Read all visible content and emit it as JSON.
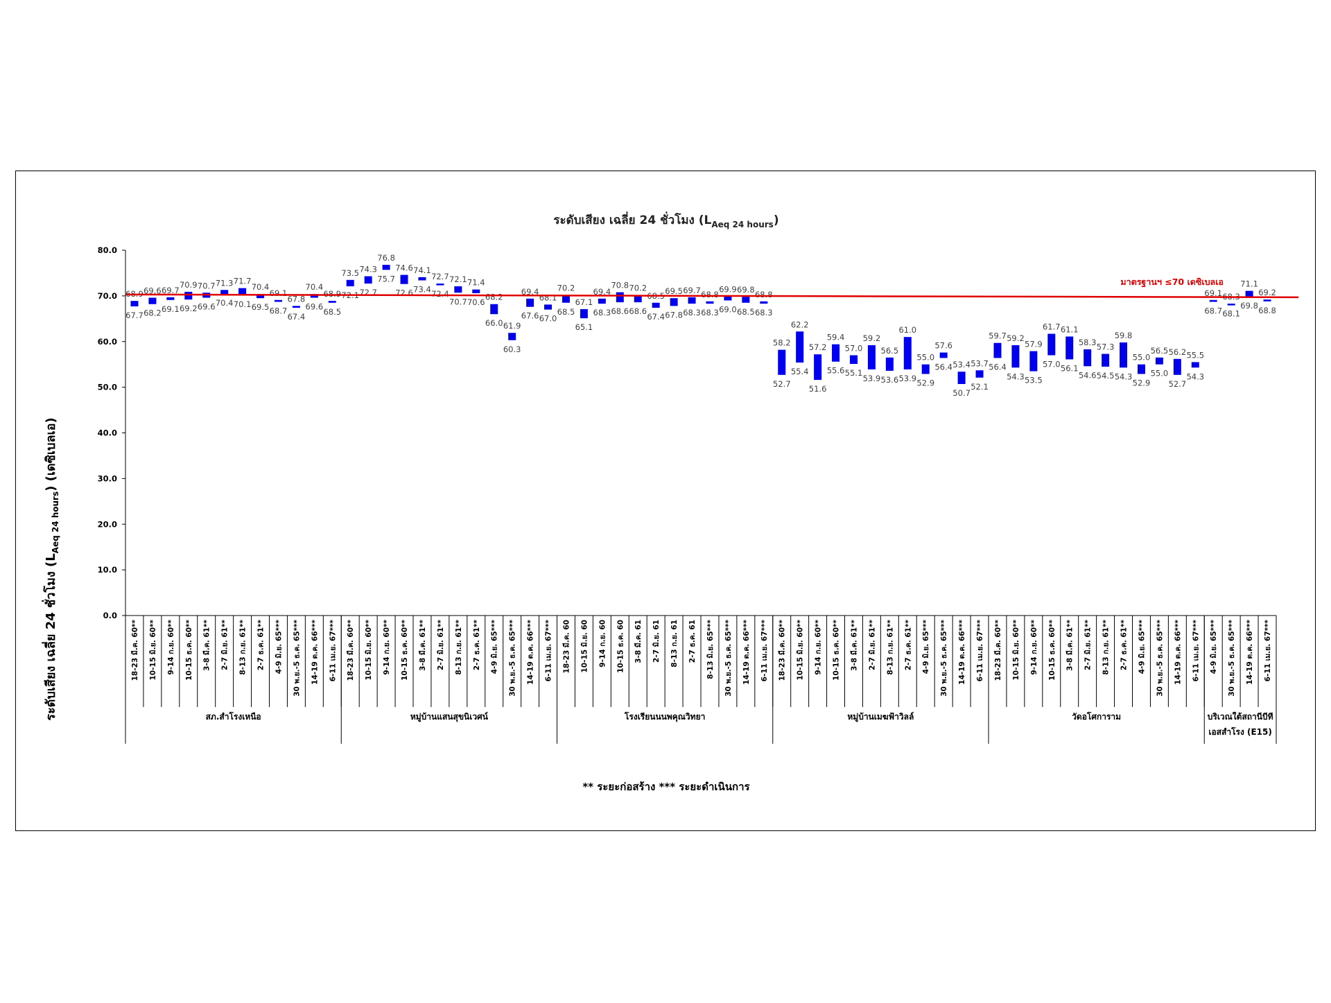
{
  "chart_data": {
    "type": "bar",
    "subtype": "floating-range (min–max)",
    "title_main": "ระดับเสียง เฉลี่ย 24 ชั่วโมง (L",
    "title_sub": "Aeq 24 hours",
    "title_end": ")",
    "ylabel_main": "ระดับเสียง เฉลี่ย 24 ชั่วโมง (L",
    "ylabel_sub": "Aeq 24 hours",
    "ylabel_end": ") (เดซิเบลเอ)",
    "ylim": [
      0,
      80
    ],
    "yticks": [
      "0.0",
      "10.0",
      "20.0",
      "30.0",
      "40.0",
      "50.0",
      "60.0",
      "70.0",
      "80.0"
    ],
    "standard": {
      "value": 70,
      "label": "มาตรฐานฯ ≤70 เดซิเบลเอ",
      "color": "#e00000"
    },
    "bar_color": "#0000ee",
    "footnote": "** ระยะก่อสร้าง     *** ระยะดำเนินการ",
    "groups": [
      {
        "name": "สภ.สำโรงเหนือ",
        "categories": [
          "18-23 มี.ค. 60**",
          "10-15 มิ.ย. 60**",
          "9-14 ก.ย. 60**",
          "10-15 ธ.ค. 60**",
          "3-8 มี.ค. 61**",
          "2-7 มิ.ย. 61**",
          "8-13 ก.ย. 61**",
          "2-7 ธ.ค. 61**",
          "4-9 มิ.ย. 65***",
          "30 พ.ย.-5 ธ.ค. 65***",
          "14-19 ต.ค. 66***",
          "6-11 เม.ย. 67***"
        ],
        "max": [
          "68.9",
          "69.6",
          "69.7",
          "70.9",
          "70.7",
          "71.3",
          "71.7",
          "70.4",
          "69.1",
          "67.8",
          "70.4",
          "68.9"
        ],
        "min": [
          "67.7",
          "68.2",
          "69.1",
          "69.2",
          "69.6",
          "70.4",
          "70.1",
          "69.5",
          "68.7",
          "67.4",
          "69.6",
          "68.5"
        ]
      },
      {
        "name": "หมู่บ้านแสนสุขนิเวศน์",
        "categories": [
          "18-23 มี.ค. 60**",
          "10-15 มิ.ย. 60**",
          "9-14 ก.ย. 60**",
          "10-15 ธ.ค. 60**",
          "3-8 มี.ค. 61**",
          "2-7 มิ.ย. 61**",
          "8-13 ก.ย. 61**",
          "2-7 ธ.ค. 61**",
          "4-9 มิ.ย. 65***",
          "30 พ.ย.-5 ธ.ค. 65***",
          "14-19 ต.ค. 66***",
          "6-11 เม.ย. 67***"
        ],
        "max": [
          "73.5",
          "74.3",
          "76.8",
          "74.6",
          "74.1",
          "72.7",
          "72.1",
          "71.4",
          "68.2",
          "61.9",
          "69.4",
          "68.1"
        ],
        "min": [
          "72.1",
          "72.7",
          "75.7",
          "72.6",
          "73.4",
          "72.4",
          "70.7",
          "70.6",
          "66.0",
          "60.3",
          "67.6",
          "67.0"
        ]
      },
      {
        "name": "โรงเรียนนนพคุณวิทยา",
        "categories": [
          "18-23 มี.ค. 60",
          "10-15 มิ.ย. 60",
          "9-14 ก.ย. 60",
          "10-15 ธ.ค. 60",
          "3-8 มี.ค. 61",
          "2-7 มิ.ย. 61",
          "8-13 ก.ย. 61",
          "2-7 ธ.ค. 61",
          "8-13 มิ.ย. 65***",
          "30 พ.ย.-5 ธ.ค. 65***",
          "14-19 ต.ค. 66***",
          "6-11 เม.ย. 67***"
        ],
        "max": [
          "70.2",
          "67.1",
          "69.4",
          "70.8",
          "70.2",
          "68.5",
          "69.5",
          "69.7",
          "68.8",
          "69.9",
          "69.8",
          "68.8"
        ],
        "min": [
          "68.5",
          "65.1",
          "68.3",
          "68.6",
          "68.6",
          "67.4",
          "67.8",
          "68.3",
          "68.3",
          "69.0",
          "68.5",
          "68.3"
        ]
      },
      {
        "name": "หมู่บ้านเมฆฟ้าวิลล์",
        "categories": [
          "18-23 มี.ค. 60**",
          "10-15 มิ.ย. 60**",
          "9-14 ก.ย. 60**",
          "10-15 ธ.ค. 60**",
          "3-8 มี.ค. 61**",
          "2-7 มิ.ย. 61**",
          "8-13 ก.ย. 61**",
          "2-7 ธ.ค. 61**",
          "4-9 มิ.ย. 65***",
          "30 พ.ย.-5 ธ.ค. 65***",
          "14-19 ต.ค. 66***",
          "6-11 เม.ย. 67***"
        ],
        "max": [
          "58.2",
          "62.2",
          "57.2",
          "59.4",
          "57.0",
          "59.2",
          "56.5",
          "61.0",
          "55.0",
          "57.6",
          "53.4",
          "53.7"
        ],
        "min": [
          "52.7",
          "55.4",
          "51.6",
          "55.6",
          "55.1",
          "53.9",
          "53.6",
          "53.9",
          "52.9",
          "56.4",
          "50.7",
          "52.1"
        ]
      },
      {
        "name": "วัดอโศการาม",
        "categories": [
          "18-23 มี.ค. 60**",
          "10-15 มิ.ย. 60**",
          "9-14 ก.ย. 60**",
          "10-15 ธ.ค. 60**",
          "3-8 มี.ค. 61**",
          "2-7 มิ.ย. 61**",
          "8-13 ก.ย. 61**",
          "2-7 ธ.ค. 61**",
          "4-9 มิ.ย. 65***",
          "30 พ.ย.-5 ธ.ค. 65***",
          "14-19 ต.ค. 66***",
          "6-11 เม.ย. 67***"
        ],
        "max": [
          "59.7",
          "59.2",
          "57.9",
          "61.7",
          "61.1",
          "58.3",
          "57.3",
          "59.8",
          "55.0",
          "56.5",
          "56.2",
          "55.5"
        ],
        "min": [
          "56.4",
          "54.3",
          "53.5",
          "57.0",
          "56.1",
          "54.6",
          "54.5",
          "54.3",
          "52.9",
          "55.0",
          "52.7",
          "54.3"
        ]
      },
      {
        "name": "บริเวณใต้สถานีบีที เอสสำโรง (E15)",
        "name_lines": [
          "บริเวณใต้สถานีบีที",
          "เอสสำโรง (E15)"
        ],
        "categories": [
          "4-9 มิ.ย. 65***",
          "30 พ.ย.-5 ธ.ค. 65***",
          "14-19 ต.ค. 66***",
          "6-11 เม.ย. 67***"
        ],
        "max": [
          "69.1",
          "68.3",
          "71.1",
          "69.2"
        ],
        "min": [
          "68.7",
          "68.1",
          "69.8",
          "68.8"
        ]
      }
    ]
  }
}
